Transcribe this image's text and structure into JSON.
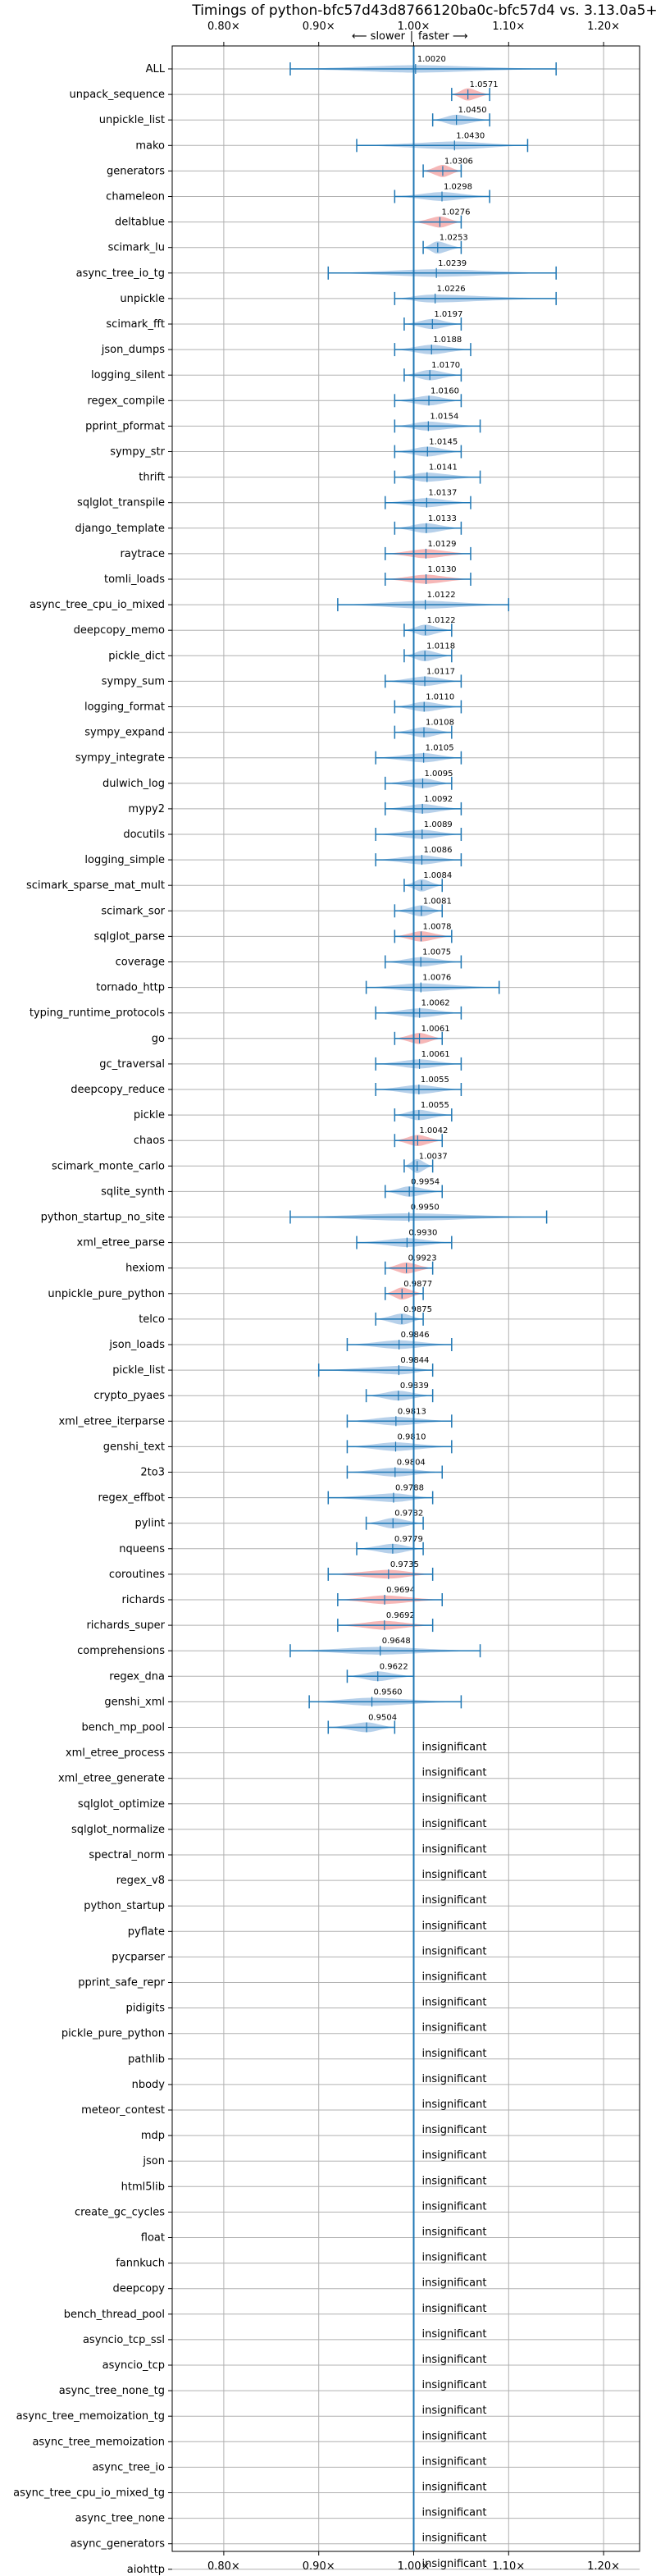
{
  "chart_data": {
    "type": "violin",
    "title": "Timings of python-bfc57d43d8766120ba0c-bfc57d4 vs. 3.13.0a5+",
    "direction": {
      "slower": "⟵ slower",
      "sep": "|",
      "faster": "faster ⟶"
    },
    "xlim": [
      0.75,
      1.23
    ],
    "xticks": [
      0.8,
      0.9,
      1.0,
      1.1,
      1.2
    ],
    "xtick_labels": [
      "0.80×",
      "0.90×",
      "1.00×",
      "1.10×",
      "1.20×"
    ],
    "reference_line": 1.0,
    "grid": true,
    "insignificant_label": "insignificant",
    "benchmarks": [
      {
        "name": "ALL",
        "value": 1.002,
        "label": "1.0020",
        "err": [
          0.87,
          1.15
        ],
        "color": "blue"
      },
      {
        "name": "unpack_sequence",
        "value": 1.0571,
        "label": "1.0571",
        "err": [
          1.04,
          1.08
        ],
        "color": "red"
      },
      {
        "name": "unpickle_list",
        "value": 1.045,
        "label": "1.0450",
        "err": [
          1.02,
          1.08
        ],
        "color": "blue"
      },
      {
        "name": "mako",
        "value": 1.043,
        "label": "1.0430",
        "err": [
          0.94,
          1.12
        ],
        "color": "blue"
      },
      {
        "name": "generators",
        "value": 1.0306,
        "label": "1.0306",
        "err": [
          1.01,
          1.05
        ],
        "color": "red"
      },
      {
        "name": "chameleon",
        "value": 1.0298,
        "label": "1.0298",
        "err": [
          0.98,
          1.08
        ],
        "color": "blue"
      },
      {
        "name": "deltablue",
        "value": 1.0276,
        "label": "1.0276",
        "err": [
          1.0,
          1.05
        ],
        "color": "red"
      },
      {
        "name": "scimark_lu",
        "value": 1.0253,
        "label": "1.0253",
        "err": [
          1.01,
          1.05
        ],
        "color": "blue"
      },
      {
        "name": "async_tree_io_tg",
        "value": 1.0239,
        "label": "1.0239",
        "err": [
          0.91,
          1.15
        ],
        "color": "blue"
      },
      {
        "name": "unpickle",
        "value": 1.0226,
        "label": "1.0226",
        "err": [
          0.98,
          1.15
        ],
        "color": "blue"
      },
      {
        "name": "scimark_fft",
        "value": 1.0197,
        "label": "1.0197",
        "err": [
          0.99,
          1.05
        ],
        "color": "blue"
      },
      {
        "name": "json_dumps",
        "value": 1.0188,
        "label": "1.0188",
        "err": [
          0.98,
          1.06
        ],
        "color": "blue"
      },
      {
        "name": "logging_silent",
        "value": 1.017,
        "label": "1.0170",
        "err": [
          0.99,
          1.05
        ],
        "color": "blue"
      },
      {
        "name": "regex_compile",
        "value": 1.016,
        "label": "1.0160",
        "err": [
          0.98,
          1.05
        ],
        "color": "blue"
      },
      {
        "name": "pprint_pformat",
        "value": 1.0154,
        "label": "1.0154",
        "err": [
          0.98,
          1.07
        ],
        "color": "blue"
      },
      {
        "name": "sympy_str",
        "value": 1.0145,
        "label": "1.0145",
        "err": [
          0.98,
          1.05
        ],
        "color": "blue"
      },
      {
        "name": "thrift",
        "value": 1.0141,
        "label": "1.0141",
        "err": [
          0.98,
          1.07
        ],
        "color": "blue"
      },
      {
        "name": "sqlglot_transpile",
        "value": 1.0137,
        "label": "1.0137",
        "err": [
          0.97,
          1.06
        ],
        "color": "blue"
      },
      {
        "name": "django_template",
        "value": 1.0133,
        "label": "1.0133",
        "err": [
          0.98,
          1.05
        ],
        "color": "blue"
      },
      {
        "name": "raytrace",
        "value": 1.0129,
        "label": "1.0129",
        "err": [
          0.97,
          1.06
        ],
        "color": "red"
      },
      {
        "name": "tomli_loads",
        "value": 1.013,
        "label": "1.0130",
        "err": [
          0.97,
          1.06
        ],
        "color": "red"
      },
      {
        "name": "async_tree_cpu_io_mixed",
        "value": 1.0122,
        "label": "1.0122",
        "err": [
          0.92,
          1.1
        ],
        "color": "blue"
      },
      {
        "name": "deepcopy_memo",
        "value": 1.0122,
        "label": "1.0122",
        "err": [
          0.99,
          1.04
        ],
        "color": "blue"
      },
      {
        "name": "pickle_dict",
        "value": 1.0118,
        "label": "1.0118",
        "err": [
          0.99,
          1.04
        ],
        "color": "blue"
      },
      {
        "name": "sympy_sum",
        "value": 1.0117,
        "label": "1.0117",
        "err": [
          0.97,
          1.05
        ],
        "color": "blue"
      },
      {
        "name": "logging_format",
        "value": 1.011,
        "label": "1.0110",
        "err": [
          0.98,
          1.05
        ],
        "color": "blue"
      },
      {
        "name": "sympy_expand",
        "value": 1.0108,
        "label": "1.0108",
        "err": [
          0.98,
          1.04
        ],
        "color": "blue"
      },
      {
        "name": "sympy_integrate",
        "value": 1.0105,
        "label": "1.0105",
        "err": [
          0.96,
          1.05
        ],
        "color": "blue"
      },
      {
        "name": "dulwich_log",
        "value": 1.0095,
        "label": "1.0095",
        "err": [
          0.97,
          1.04
        ],
        "color": "blue"
      },
      {
        "name": "mypy2",
        "value": 1.0092,
        "label": "1.0092",
        "err": [
          0.97,
          1.05
        ],
        "color": "blue"
      },
      {
        "name": "docutils",
        "value": 1.0089,
        "label": "1.0089",
        "err": [
          0.96,
          1.05
        ],
        "color": "blue"
      },
      {
        "name": "logging_simple",
        "value": 1.0086,
        "label": "1.0086",
        "err": [
          0.96,
          1.05
        ],
        "color": "blue"
      },
      {
        "name": "scimark_sparse_mat_mult",
        "value": 1.0084,
        "label": "1.0084",
        "err": [
          0.99,
          1.03
        ],
        "color": "blue"
      },
      {
        "name": "scimark_sor",
        "value": 1.0081,
        "label": "1.0081",
        "err": [
          0.98,
          1.03
        ],
        "color": "blue"
      },
      {
        "name": "sqlglot_parse",
        "value": 1.0078,
        "label": "1.0078",
        "err": [
          0.98,
          1.04
        ],
        "color": "red"
      },
      {
        "name": "coverage",
        "value": 1.0075,
        "label": "1.0075",
        "err": [
          0.97,
          1.05
        ],
        "color": "blue"
      },
      {
        "name": "tornado_http",
        "value": 1.0076,
        "label": "1.0076",
        "err": [
          0.95,
          1.09
        ],
        "color": "blue"
      },
      {
        "name": "typing_runtime_protocols",
        "value": 1.0062,
        "label": "1.0062",
        "err": [
          0.96,
          1.05
        ],
        "color": "blue"
      },
      {
        "name": "go",
        "value": 1.0061,
        "label": "1.0061",
        "err": [
          0.98,
          1.03
        ],
        "color": "red"
      },
      {
        "name": "gc_traversal",
        "value": 1.0061,
        "label": "1.0061",
        "err": [
          0.96,
          1.05
        ],
        "color": "blue"
      },
      {
        "name": "deepcopy_reduce",
        "value": 1.0055,
        "label": "1.0055",
        "err": [
          0.96,
          1.05
        ],
        "color": "blue"
      },
      {
        "name": "pickle",
        "value": 1.0055,
        "label": "1.0055",
        "err": [
          0.98,
          1.04
        ],
        "color": "blue"
      },
      {
        "name": "chaos",
        "value": 1.0042,
        "label": "1.0042",
        "err": [
          0.98,
          1.03
        ],
        "color": "red"
      },
      {
        "name": "scimark_monte_carlo",
        "value": 1.0037,
        "label": "1.0037",
        "err": [
          0.99,
          1.02
        ],
        "color": "blue"
      },
      {
        "name": "sqlite_synth",
        "value": 0.9954,
        "label": "0.9954",
        "err": [
          0.97,
          1.03
        ],
        "color": "blue"
      },
      {
        "name": "python_startup_no_site",
        "value": 0.995,
        "label": "0.9950",
        "err": [
          0.87,
          1.14
        ],
        "color": "blue"
      },
      {
        "name": "xml_etree_parse",
        "value": 0.993,
        "label": "0.9930",
        "err": [
          0.94,
          1.04
        ],
        "color": "blue"
      },
      {
        "name": "hexiom",
        "value": 0.9923,
        "label": "0.9923",
        "err": [
          0.97,
          1.02
        ],
        "color": "red"
      },
      {
        "name": "unpickle_pure_python",
        "value": 0.9877,
        "label": "0.9877",
        "err": [
          0.97,
          1.01
        ],
        "color": "red"
      },
      {
        "name": "telco",
        "value": 0.9875,
        "label": "0.9875",
        "err": [
          0.96,
          1.01
        ],
        "color": "blue"
      },
      {
        "name": "json_loads",
        "value": 0.9846,
        "label": "0.9846",
        "err": [
          0.93,
          1.04
        ],
        "color": "blue"
      },
      {
        "name": "pickle_list",
        "value": 0.9844,
        "label": "0.9844",
        "err": [
          0.9,
          1.02
        ],
        "color": "blue"
      },
      {
        "name": "crypto_pyaes",
        "value": 0.9839,
        "label": "0.9839",
        "err": [
          0.95,
          1.02
        ],
        "color": "blue"
      },
      {
        "name": "xml_etree_iterparse",
        "value": 0.9813,
        "label": "0.9813",
        "err": [
          0.93,
          1.04
        ],
        "color": "blue"
      },
      {
        "name": "genshi_text",
        "value": 0.981,
        "label": "0.9810",
        "err": [
          0.93,
          1.04
        ],
        "color": "blue"
      },
      {
        "name": "2to3",
        "value": 0.9804,
        "label": "0.9804",
        "err": [
          0.93,
          1.03
        ],
        "color": "blue"
      },
      {
        "name": "regex_effbot",
        "value": 0.9788,
        "label": "0.9788",
        "err": [
          0.91,
          1.02
        ],
        "color": "blue"
      },
      {
        "name": "pylint",
        "value": 0.9782,
        "label": "0.9782",
        "err": [
          0.95,
          1.01
        ],
        "color": "blue"
      },
      {
        "name": "nqueens",
        "value": 0.9779,
        "label": "0.9779",
        "err": [
          0.94,
          1.01
        ],
        "color": "blue"
      },
      {
        "name": "coroutines",
        "value": 0.9735,
        "label": "0.9735",
        "err": [
          0.91,
          1.02
        ],
        "color": "red"
      },
      {
        "name": "richards",
        "value": 0.9694,
        "label": "0.9694",
        "err": [
          0.92,
          1.03
        ],
        "color": "red"
      },
      {
        "name": "richards_super",
        "value": 0.9692,
        "label": "0.9692",
        "err": [
          0.92,
          1.02
        ],
        "color": "red"
      },
      {
        "name": "comprehensions",
        "value": 0.9648,
        "label": "0.9648",
        "err": [
          0.87,
          1.07
        ],
        "color": "blue"
      },
      {
        "name": "regex_dna",
        "value": 0.9622,
        "label": "0.9622",
        "err": [
          0.93,
          1.0
        ],
        "color": "blue"
      },
      {
        "name": "genshi_xml",
        "value": 0.956,
        "label": "0.9560",
        "err": [
          0.89,
          1.05
        ],
        "color": "blue"
      },
      {
        "name": "bench_mp_pool",
        "value": 0.9504,
        "label": "0.9504",
        "err": [
          0.91,
          0.98
        ],
        "color": "blue"
      },
      {
        "name": "xml_etree_process",
        "insignificant": true
      },
      {
        "name": "xml_etree_generate",
        "insignificant": true
      },
      {
        "name": "sqlglot_optimize",
        "insignificant": true
      },
      {
        "name": "sqlglot_normalize",
        "insignificant": true
      },
      {
        "name": "spectral_norm",
        "insignificant": true
      },
      {
        "name": "regex_v8",
        "insignificant": true
      },
      {
        "name": "python_startup",
        "insignificant": true
      },
      {
        "name": "pyflate",
        "insignificant": true
      },
      {
        "name": "pycparser",
        "insignificant": true
      },
      {
        "name": "pprint_safe_repr",
        "insignificant": true
      },
      {
        "name": "pidigits",
        "insignificant": true
      },
      {
        "name": "pickle_pure_python",
        "insignificant": true
      },
      {
        "name": "pathlib",
        "insignificant": true
      },
      {
        "name": "nbody",
        "insignificant": true
      },
      {
        "name": "meteor_contest",
        "insignificant": true
      },
      {
        "name": "mdp",
        "insignificant": true
      },
      {
        "name": "json",
        "insignificant": true
      },
      {
        "name": "html5lib",
        "insignificant": true
      },
      {
        "name": "create_gc_cycles",
        "insignificant": true
      },
      {
        "name": "float",
        "insignificant": true
      },
      {
        "name": "fannkuch",
        "insignificant": true
      },
      {
        "name": "deepcopy",
        "insignificant": true
      },
      {
        "name": "bench_thread_pool",
        "insignificant": true
      },
      {
        "name": "asyncio_tcp_ssl",
        "insignificant": true
      },
      {
        "name": "asyncio_tcp",
        "insignificant": true
      },
      {
        "name": "async_tree_none_tg",
        "insignificant": true
      },
      {
        "name": "async_tree_memoization_tg",
        "insignificant": true
      },
      {
        "name": "async_tree_memoization",
        "insignificant": true
      },
      {
        "name": "async_tree_io",
        "insignificant": true
      },
      {
        "name": "async_tree_cpu_io_mixed_tg",
        "insignificant": true
      },
      {
        "name": "async_tree_none",
        "insignificant": true
      },
      {
        "name": "async_generators",
        "insignificant": true
      },
      {
        "name": "aiohttp",
        "insignificant": true
      }
    ]
  },
  "colors": {
    "blue_fill": "#a9c8e6",
    "red_fill": "#f4aaaa",
    "errbar": "#1f77b4",
    "refline": "#1f77b4",
    "grid": "#b0b0b0",
    "axis": "#000000"
  }
}
